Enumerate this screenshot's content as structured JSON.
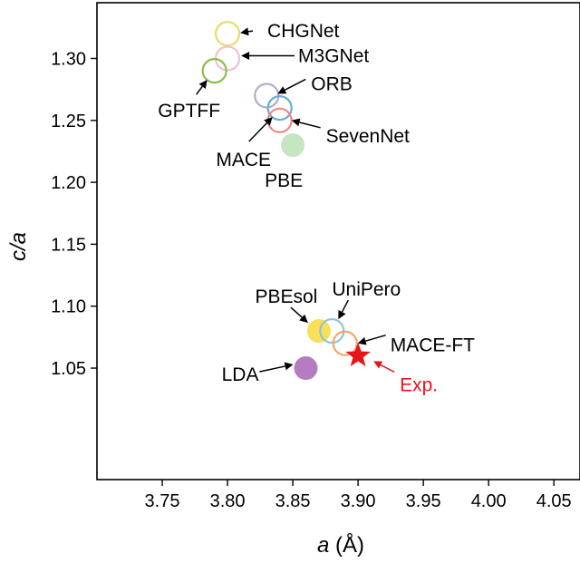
{
  "chart_data": {
    "type": "scatter",
    "title": "",
    "xlabel_italic": "a",
    "xlabel_rest": " (Å)",
    "ylabel": "c/a",
    "xlim": [
      3.7,
      4.07
    ],
    "ylim": [
      0.96,
      1.345
    ],
    "xticks": [
      3.75,
      3.8,
      3.85,
      3.9,
      3.95,
      4.0,
      4.05
    ],
    "xtick_labels": [
      "3.75",
      "3.80",
      "3.85",
      "3.90",
      "3.95",
      "4.00",
      "4.05"
    ],
    "yticks": [
      1.05,
      1.1,
      1.15,
      1.2,
      1.25,
      1.3
    ],
    "ytick_labels": [
      "1.05",
      "1.10",
      "1.15",
      "1.20",
      "1.25",
      "1.30"
    ],
    "grid": false,
    "points": [
      {
        "name": "CHGNet",
        "label": "CHGNet",
        "x": 3.8,
        "y": 1.32,
        "style": "open",
        "color": "#e6dc6e"
      },
      {
        "name": "M3GNet",
        "label": "M3GNet",
        "x": 3.8,
        "y": 1.3,
        "style": "open",
        "color": "#f2bfd6"
      },
      {
        "name": "GPTFF",
        "label": "GPTFF",
        "x": 3.79,
        "y": 1.29,
        "style": "open",
        "color": "#8bbf4e"
      },
      {
        "name": "ORB",
        "label": "ORB",
        "x": 3.83,
        "y": 1.27,
        "style": "open",
        "color": "#b3aecb"
      },
      {
        "name": "MACE",
        "label": "MACE",
        "x": 3.84,
        "y": 1.26,
        "style": "open",
        "color": "#6aaed0"
      },
      {
        "name": "SevenNet",
        "label": "SevenNet",
        "x": 3.84,
        "y": 1.25,
        "style": "open",
        "color": "#ea8a85"
      },
      {
        "name": "PBE",
        "label": "PBE",
        "x": 3.85,
        "y": 1.23,
        "style": "filled",
        "color": "#c5e6c0"
      },
      {
        "name": "PBEsol",
        "label": "PBEsol",
        "x": 3.87,
        "y": 1.08,
        "style": "filled",
        "color": "#f8e05a"
      },
      {
        "name": "UniPero",
        "label": "UniPero",
        "x": 3.88,
        "y": 1.08,
        "style": "open",
        "color": "#8ec3d8"
      },
      {
        "name": "MACE-FT",
        "label": "MACE-FT",
        "x": 3.89,
        "y": 1.07,
        "style": "open",
        "color": "#f0a868"
      },
      {
        "name": "LDA",
        "label": "LDA",
        "x": 3.86,
        "y": 1.05,
        "style": "filled",
        "color": "#b67cc0"
      },
      {
        "name": "Exp",
        "label": "Exp.",
        "x": 3.9,
        "y": 1.06,
        "style": "star",
        "color": "#e8141b"
      }
    ]
  }
}
